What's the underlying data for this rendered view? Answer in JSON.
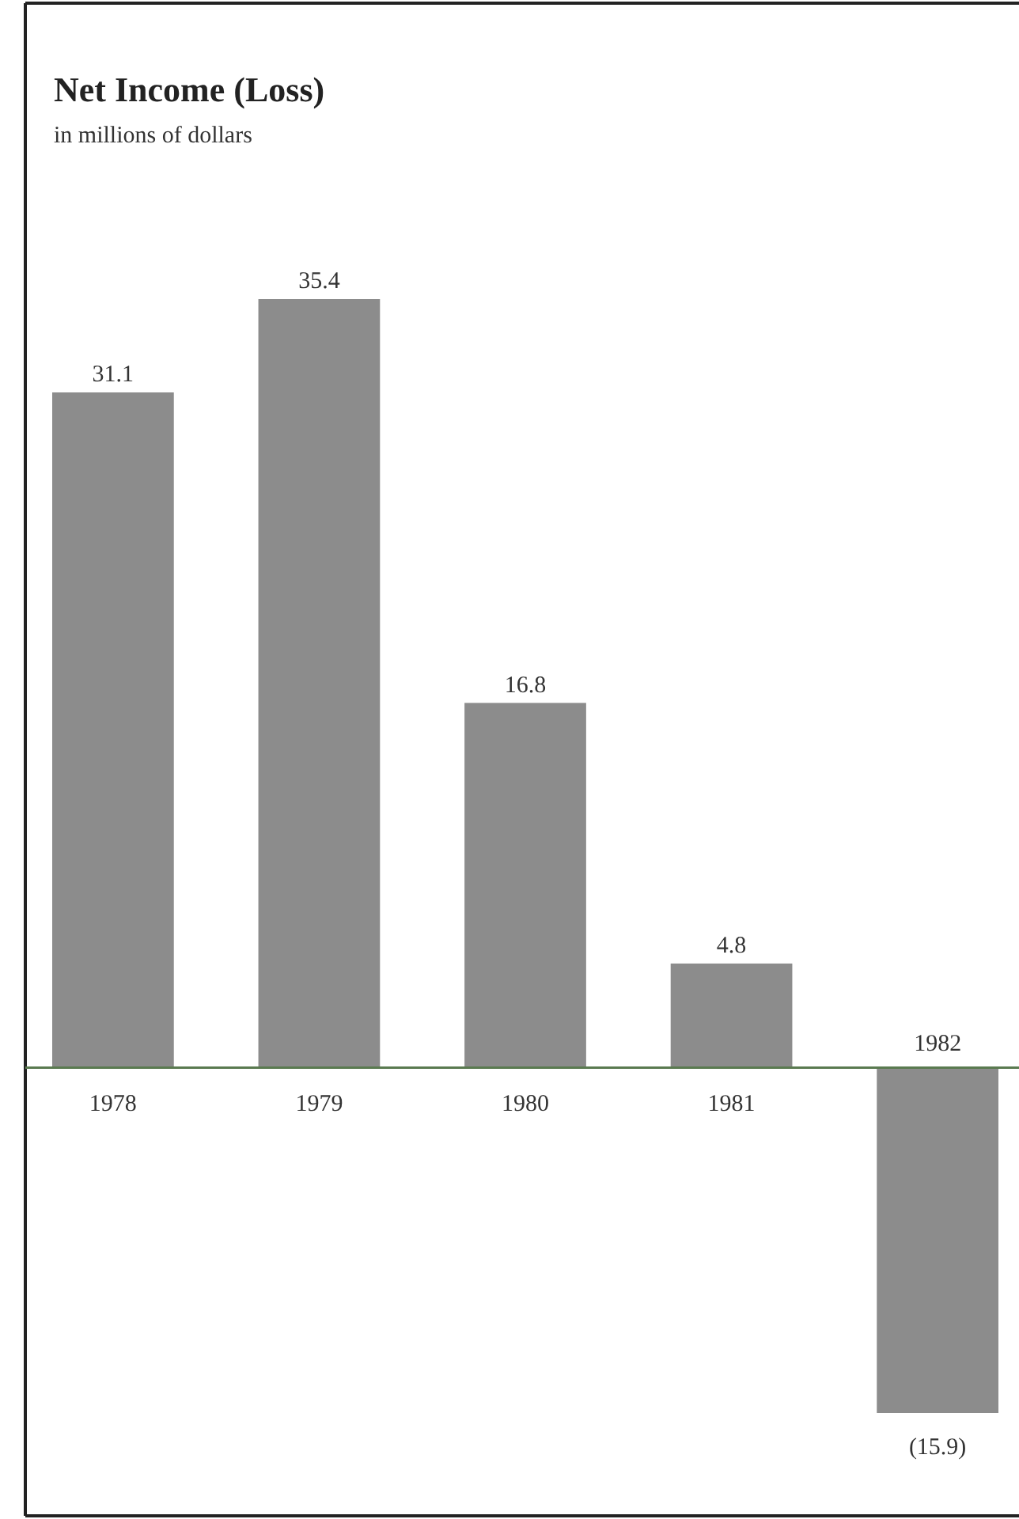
{
  "chart_data": {
    "type": "bar",
    "title": "Net Income (Loss)",
    "subtitle": "in millions of dollars",
    "categories": [
      "1978",
      "1979",
      "1980",
      "1981",
      "1982"
    ],
    "values": [
      31.1,
      35.4,
      16.8,
      4.8,
      -15.9
    ],
    "value_labels": [
      "31.1",
      "35.4",
      "16.8",
      "4.8",
      "(15.9)"
    ],
    "color": "#8c8c8c"
  }
}
